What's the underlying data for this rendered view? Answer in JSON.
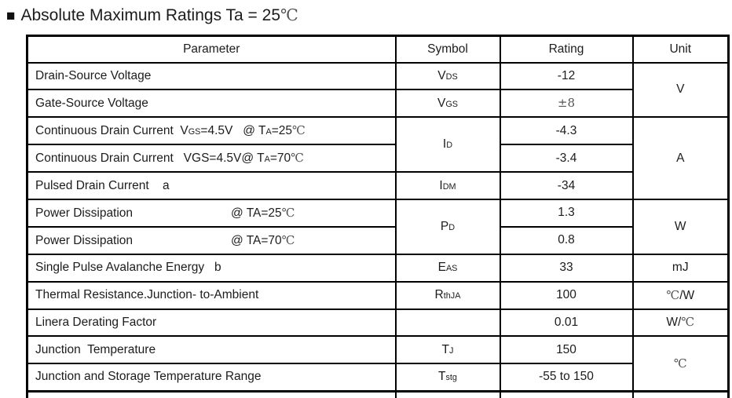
{
  "colors": {
    "background": "#ffffff",
    "border": "#000000",
    "text": "#1c1c1c",
    "alt_glyph": "#555555"
  },
  "title": {
    "bullet": "■",
    "segments": [
      {
        "t": "Absolute Maximum Ratings Ta = 25"
      },
      {
        "t": "℃",
        "alt": true
      }
    ]
  },
  "table": {
    "headers": {
      "parameter": "Parameter",
      "symbol": "Symbol",
      "rating": "Rating",
      "unit": "Unit"
    },
    "rows": [
      {
        "parameter": [
          {
            "t": "Drain-Source Voltage"
          }
        ],
        "symbol": [
          {
            "t": "V"
          },
          {
            "t": "DS",
            "sub": true
          }
        ],
        "rating": [
          {
            "t": "-12"
          }
        ],
        "unit": [
          {
            "t": "V"
          }
        ]
      },
      {
        "parameter": [
          {
            "t": "Gate-Source Voltage"
          }
        ],
        "symbol": [
          {
            "t": "V"
          },
          {
            "t": "GS",
            "sub": true
          }
        ],
        "rating": [
          {
            "t": "±8",
            "alt": true
          }
        ]
      },
      {
        "parameter": [
          {
            "t": "Continuous Drain Current  V"
          },
          {
            "t": "GS",
            "sub": true
          },
          {
            "t": "=4.5V   @ T"
          },
          {
            "t": "A",
            "sub": true
          },
          {
            "t": "=25"
          },
          {
            "t": "℃",
            "alt": true
          }
        ],
        "symbol": [
          {
            "t": "I"
          },
          {
            "t": "D",
            "sub": true
          }
        ],
        "rating": [
          {
            "t": "-4.3"
          }
        ],
        "unit": [
          {
            "t": "A"
          }
        ]
      },
      {
        "parameter": [
          {
            "t": "Continuous Drain Current   VGS=4.5V@ T"
          },
          {
            "t": "A",
            "sub": true
          },
          {
            "t": "=70"
          },
          {
            "t": "℃",
            "alt": true
          }
        ],
        "rating": [
          {
            "t": "-3.4"
          }
        ]
      },
      {
        "parameter": [
          {
            "t": "Pulsed Drain Current    a"
          }
        ],
        "symbol": [
          {
            "t": "I"
          },
          {
            "t": "DM",
            "sub": true
          }
        ],
        "rating": [
          {
            "t": "-34"
          }
        ]
      },
      {
        "parameter": [
          {
            "t": "Power Dissipation                             @ TA=25"
          },
          {
            "t": "℃",
            "alt": true
          }
        ],
        "symbol": [
          {
            "t": "P"
          },
          {
            "t": "D",
            "sub": true
          }
        ],
        "rating": [
          {
            "t": "1.3"
          }
        ],
        "unit": [
          {
            "t": "W"
          }
        ]
      },
      {
        "parameter": [
          {
            "t": "Power Dissipation                             @ TA=70"
          },
          {
            "t": "℃",
            "alt": true
          }
        ],
        "rating": [
          {
            "t": "0.8"
          }
        ]
      },
      {
        "parameter": [
          {
            "t": "Single Pulse Avalanche Energy   b"
          }
        ],
        "symbol": [
          {
            "t": "E"
          },
          {
            "t": "AS",
            "sub": true
          }
        ],
        "rating": [
          {
            "t": "33"
          }
        ],
        "unit": [
          {
            "t": "mJ"
          }
        ]
      },
      {
        "parameter": [
          {
            "t": "Thermal Resistance.Junction- to-Ambient"
          }
        ],
        "symbol": [
          {
            "t": "R"
          },
          {
            "t": "thJA",
            "sub": true
          }
        ],
        "rating": [
          {
            "t": "100"
          }
        ],
        "unit": [
          {
            "t": "℃",
            "alt": true
          },
          {
            "t": "/W"
          }
        ]
      },
      {
        "parameter": [
          {
            "t": "Linera Derating Factor"
          }
        ],
        "symbol": [
          {
            "t": ""
          }
        ],
        "rating": [
          {
            "t": "0.01"
          }
        ],
        "unit": [
          {
            "t": "W/"
          },
          {
            "t": "℃",
            "alt": true
          }
        ]
      },
      {
        "parameter": [
          {
            "t": "Junction  Temperature"
          }
        ],
        "symbol": [
          {
            "t": "T"
          },
          {
            "t": "J",
            "sub": true
          }
        ],
        "rating": [
          {
            "t": "150"
          }
        ],
        "unit": [
          {
            "t": "℃",
            "alt": true
          }
        ]
      },
      {
        "parameter": [
          {
            "t": "Junction and Storage Temperature Range"
          }
        ],
        "symbol": [
          {
            "t": "T"
          },
          {
            "t": "stg",
            "sub": true
          }
        ],
        "rating": [
          {
            "t": "-55 to 150"
          }
        ]
      }
    ]
  }
}
